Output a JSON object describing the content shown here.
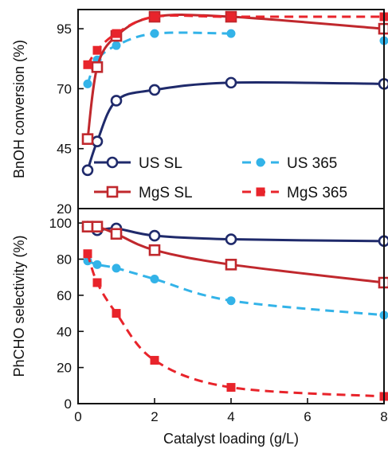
{
  "chart_data": {
    "type": "line",
    "xlabel": "Catalyst loading (g/L)",
    "xlim": [
      0,
      8
    ],
    "xticks": [
      "0",
      "2",
      "4",
      "6",
      "8"
    ],
    "series_styles": {
      "US SL": {
        "color": "#1f2a6b",
        "dash": "solid",
        "marker": "open-circle"
      },
      "US 365": {
        "color": "#33b3e8",
        "dash": "dashed",
        "marker": "filled-circle"
      },
      "MgS SL": {
        "color": "#c0282d",
        "dash": "solid",
        "marker": "open-square"
      },
      "MgS 365": {
        "color": "#e8242b",
        "dash": "dashed",
        "marker": "filled-square"
      }
    },
    "panels": [
      {
        "ylabel": "BnOH conversion (%)",
        "ylim": [
          20,
          103
        ],
        "yticks": [
          "20",
          "45",
          "70",
          "95"
        ],
        "legend": [
          "US SL",
          "US 365",
          "MgS SL",
          "MgS 365"
        ],
        "series": [
          {
            "name": "US SL",
            "x": [
              0.25,
              0.5,
              1,
              2,
              4,
              8
            ],
            "y": [
              36,
              48,
              65,
              69.5,
              72.5,
              72
            ]
          },
          {
            "name": "US 365",
            "x": [
              0.25,
              0.5,
              1,
              2,
              4
            ],
            "y": [
              72,
              82,
              88,
              93,
              93
            ]
          },
          {
            "name": "MgS SL",
            "x": [
              0.25,
              0.5,
              1,
              2,
              4,
              8
            ],
            "y": [
              49,
              79,
              92,
              100,
              100,
              95
            ]
          },
          {
            "name": "MgS 365",
            "x": [
              0.25,
              0.5,
              1,
              2,
              4,
              8
            ],
            "y": [
              80,
              86,
              93,
              100,
              100,
              100
            ]
          }
        ],
        "extra_series": [
          {
            "name": "US 365",
            "x": [
              8
            ],
            "y": [
              90
            ]
          }
        ]
      },
      {
        "ylabel": "PhCHO selectivity (%)",
        "ylim": [
          0,
          108
        ],
        "yticks": [
          "0",
          "20",
          "40",
          "60",
          "80",
          "100"
        ],
        "series": [
          {
            "name": "US SL",
            "x": [
              0.25,
              0.5,
              1,
              2,
              4,
              8
            ],
            "y": [
              98,
              96,
              97,
              93,
              91,
              90
            ]
          },
          {
            "name": "US 365",
            "x": [
              0.25,
              0.5,
              1,
              2,
              4,
              8
            ],
            "y": [
              79,
              77,
              75,
              69,
              57,
              49
            ]
          },
          {
            "name": "MgS SL",
            "x": [
              0.25,
              0.5,
              1,
              2,
              4,
              8
            ],
            "y": [
              98,
              98,
              94,
              85,
              77,
              67
            ]
          },
          {
            "name": "MgS 365",
            "x": [
              0.25,
              0.5,
              1,
              2,
              4,
              8
            ],
            "y": [
              83,
              67,
              50,
              24,
              9,
              4
            ]
          }
        ]
      }
    ]
  }
}
